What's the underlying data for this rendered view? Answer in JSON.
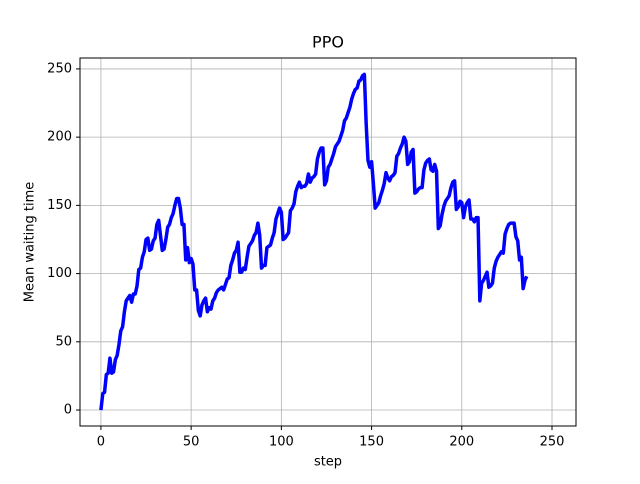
{
  "chart_data": {
    "type": "line",
    "title": "PPO",
    "x_label": "step",
    "y_label": "Mean waiting time",
    "series": [
      {
        "name": "PPO",
        "color": "#0000ff",
        "values": [
          0,
          12,
          13,
          26,
          27,
          38,
          27,
          28,
          37,
          40,
          48,
          58,
          61,
          72,
          80,
          82,
          84,
          79,
          85,
          85,
          91,
          103,
          104,
          112,
          116,
          125,
          126,
          117,
          118,
          124,
          126,
          136,
          139,
          128,
          117,
          118,
          125,
          134,
          136,
          141,
          144,
          150,
          155,
          155,
          148,
          136,
          136,
          110,
          119,
          108,
          111,
          107,
          88,
          88,
          73,
          69,
          77,
          80,
          82,
          72,
          75,
          74,
          80,
          82,
          86,
          88,
          89,
          90,
          88,
          92,
          96,
          97,
          106,
          110,
          115,
          117,
          123,
          101,
          101,
          104,
          103,
          112,
          120,
          122,
          124,
          128,
          130,
          137,
          128,
          104,
          106,
          106,
          119,
          120,
          121,
          126,
          130,
          140,
          144,
          148,
          145,
          125,
          126,
          128,
          130,
          146,
          148,
          151,
          160,
          164,
          167,
          163,
          164,
          164,
          166,
          173,
          167,
          170,
          171,
          173,
          184,
          189,
          192,
          192,
          165,
          168,
          178,
          180,
          184,
          188,
          193,
          195,
          197,
          201,
          205,
          212,
          214,
          218,
          222,
          228,
          232,
          235,
          236,
          241,
          242,
          245,
          246,
          210,
          183,
          178,
          182,
          166,
          148,
          150,
          152,
          157,
          161,
          166,
          174,
          170,
          168,
          171,
          172,
          174,
          186,
          188,
          192,
          195,
          200,
          197,
          180,
          182,
          189,
          191,
          159,
          160,
          162,
          163,
          163,
          176,
          181,
          183,
          184,
          176,
          175,
          180,
          175,
          133,
          135,
          143,
          149,
          153,
          155,
          157,
          163,
          167,
          168,
          147,
          149,
          153,
          152,
          141,
          149,
          152,
          154,
          140,
          140,
          138,
          141,
          141,
          80,
          93,
          95,
          98,
          101,
          90,
          91,
          93,
          104,
          109,
          112,
          114,
          116,
          115,
          129,
          133,
          136,
          137,
          137,
          137,
          127,
          124,
          110,
          112,
          89,
          95,
          98
        ]
      }
    ],
    "xlim": [
      -11.6,
      263.3
    ],
    "xticks": [
      0,
      50,
      100,
      150,
      200,
      250
    ],
    "ylim": [
      -11.7,
      258
    ],
    "yticks": [
      0,
      50,
      100,
      150,
      200,
      250
    ],
    "grid": true
  }
}
